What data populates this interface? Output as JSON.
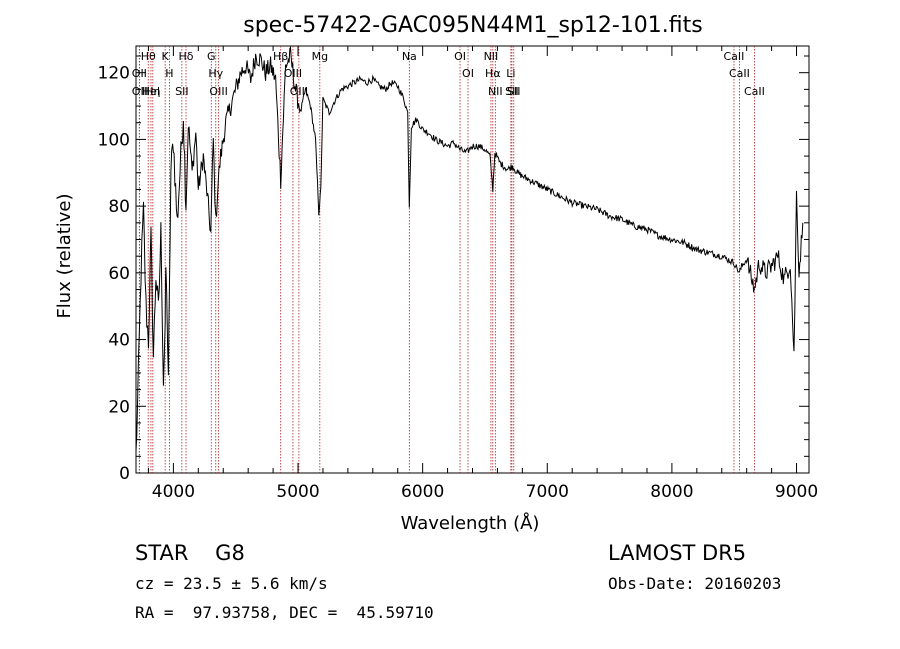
{
  "chart_data": {
    "type": "line",
    "title": "spec-57422-GAC095N44M1_sp12-101.fits",
    "xlabel": "Wavelength (Å)",
    "ylabel": "Flux (relative)",
    "xlim": [
      3700,
      9100
    ],
    "ylim": [
      0,
      128
    ],
    "xticks": [
      4000,
      5000,
      6000,
      7000,
      8000,
      9000
    ],
    "yticks": [
      0,
      20,
      40,
      60,
      80,
      100,
      120
    ],
    "grid": false,
    "legend": "none",
    "line_color": "#000000",
    "marker_color": "#b22222",
    "spectrum": {
      "x": [
        3700,
        3720,
        3740,
        3760,
        3780,
        3800,
        3820,
        3840,
        3860,
        3880,
        3900,
        3920,
        3934,
        3940,
        3960,
        3968,
        3980,
        4000,
        4030,
        4060,
        4080,
        4101,
        4120,
        4150,
        4180,
        4200,
        4240,
        4280,
        4300,
        4320,
        4340,
        4360,
        4380,
        4420,
        4460,
        4500,
        4540,
        4580,
        4620,
        4660,
        4700,
        4740,
        4780,
        4820,
        4861,
        4900,
        4940,
        4980,
        5020,
        5060,
        5100,
        5140,
        5167,
        5183,
        5200,
        5250,
        5300,
        5350,
        5400,
        5450,
        5500,
        5550,
        5600,
        5650,
        5700,
        5750,
        5800,
        5850,
        5880,
        5893,
        5910,
        5950,
        6000,
        6050,
        6100,
        6150,
        6200,
        6250,
        6300,
        6350,
        6400,
        6450,
        6500,
        6540,
        6563,
        6580,
        6620,
        6680,
        6720,
        6760,
        6800,
        6900,
        7000,
        7100,
        7200,
        7300,
        7400,
        7500,
        7600,
        7700,
        7800,
        7900,
        8000,
        8100,
        8200,
        8300,
        8400,
        8498,
        8542,
        8560,
        8600,
        8662,
        8700,
        8750,
        8800,
        8850,
        8900,
        8950,
        8980,
        9000,
        9020,
        9050
      ],
      "y": [
        5,
        30,
        60,
        78,
        50,
        40,
        70,
        35,
        60,
        48,
        72,
        28,
        45,
        62,
        30,
        52,
        90,
        100,
        75,
        95,
        108,
        80,
        105,
        90,
        102,
        85,
        95,
        80,
        72,
        100,
        75,
        88,
        95,
        105,
        110,
        115,
        120,
        122,
        118,
        125,
        124,
        120,
        122,
        118,
        88,
        122,
        125,
        115,
        108,
        115,
        110,
        100,
        78,
        85,
        112,
        108,
        112,
        115,
        116,
        117,
        118,
        117,
        118,
        116,
        115,
        117,
        116,
        112,
        108,
        80,
        104,
        106,
        103,
        102,
        100,
        99,
        98,
        99,
        97,
        96,
        98,
        98,
        97,
        95,
        85,
        96,
        93,
        91,
        92,
        90,
        89,
        87,
        85,
        83,
        81,
        80,
        79,
        77,
        76,
        74,
        73,
        71,
        70,
        69,
        67,
        66,
        65,
        63,
        60,
        62,
        64,
        55,
        63,
        60,
        62,
        65,
        58,
        63,
        35,
        84,
        60,
        75
      ]
    },
    "lines": [
      {
        "label": "Hθ",
        "x": 3798
      },
      {
        "label": "OII",
        "x": 3727
      },
      {
        "label": "OII",
        "x": 3727
      },
      {
        "label": "HeI",
        "x": 3820
      },
      {
        "label": "Hη",
        "x": 3835
      },
      {
        "label": "K",
        "x": 3934
      },
      {
        "label": "H",
        "x": 3968
      },
      {
        "label": "SII",
        "x": 4068
      },
      {
        "label": "Hδ",
        "x": 4101
      },
      {
        "label": "G",
        "x": 4304
      },
      {
        "label": "Hγ",
        "x": 4340
      },
      {
        "label": "OIII",
        "x": 4363
      },
      {
        "label": "Hβ",
        "x": 4861
      },
      {
        "label": "OIII",
        "x": 4959
      },
      {
        "label": "OIII",
        "x": 5007
      },
      {
        "label": "Mg",
        "x": 5175
      },
      {
        "label": "Na",
        "x": 5893
      },
      {
        "label": "OI",
        "x": 6300
      },
      {
        "label": "OI",
        "x": 6364
      },
      {
        "label": "NII",
        "x": 6548
      },
      {
        "label": "Hα",
        "x": 6563
      },
      {
        "label": "NII",
        "x": 6583
      },
      {
        "label": "Li",
        "x": 6708
      },
      {
        "label": "SII",
        "x": 6716
      },
      {
        "label": "SII",
        "x": 6731
      },
      {
        "label": "CaII",
        "x": 8498
      },
      {
        "label": "CaII",
        "x": 8542
      },
      {
        "label": "CaII",
        "x": 8662
      }
    ]
  },
  "info": {
    "class_line": "STAR    G8",
    "survey": "LAMOST DR5",
    "cz_line": "cz = 23.5 ± 5.6 km/s",
    "obs_date": "Obs-Date: 20160203",
    "radec_line": "RA =  97.93758, DEC =  45.59710"
  }
}
